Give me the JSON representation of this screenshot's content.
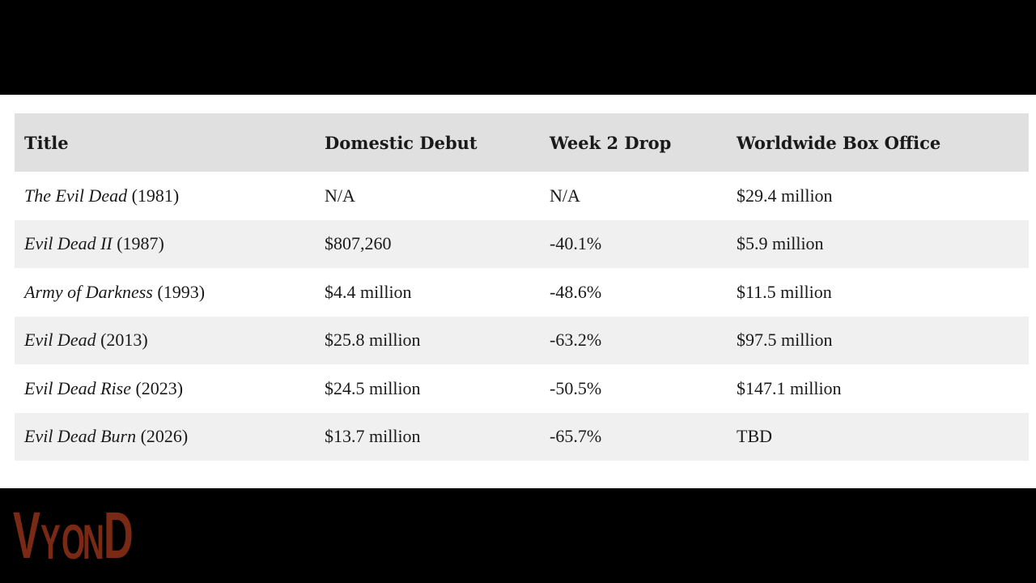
{
  "table": {
    "headers": [
      "Title",
      "Domestic Debut",
      "Week 2 Drop",
      "Worldwide Box Office"
    ],
    "rows": [
      {
        "title": "The Evil Dead",
        "year": "(1981)",
        "debut": "N/A",
        "drop": "N/A",
        "worldwide": "$29.4 million"
      },
      {
        "title": "Evil Dead II",
        "year": "(1987)",
        "debut": "$807,260",
        "drop": "-40.1%",
        "worldwide": "$5.9 million"
      },
      {
        "title": "Army of Darkness",
        "year": "(1993)",
        "debut": "$4.4 million",
        "drop": "-48.6%",
        "worldwide": "$11.5 million"
      },
      {
        "title": "Evil Dead",
        "year": "(2013)",
        "debut": "$25.8 million",
        "drop": "-63.2%",
        "worldwide": "$97.5 million"
      },
      {
        "title": "Evil Dead Rise",
        "year": "(2023)",
        "debut": "$24.5 million",
        "drop": "-50.5%",
        "worldwide": "$147.1 million"
      },
      {
        "title": "Evil Dead Burn",
        "year": "(2026)",
        "debut": "$13.7 million",
        "drop": "-65.7%",
        "worldwide": "TBD"
      }
    ]
  },
  "watermark": {
    "text": "VYOND",
    "color": "#7a2a14"
  },
  "colors": {
    "header_bg": "#e0e0e0",
    "stripe_bg": "#f0f0f0",
    "frame_bg": "#000000"
  }
}
